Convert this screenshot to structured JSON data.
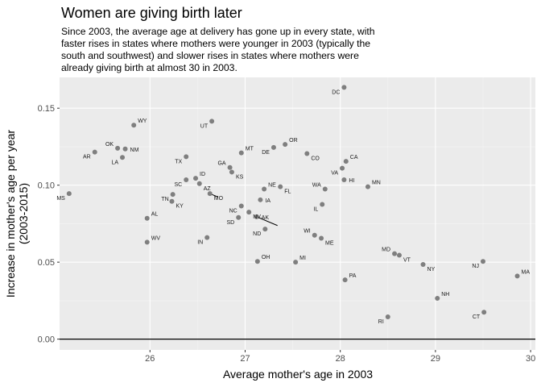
{
  "chart_data": {
    "type": "scatter",
    "title": "Women are giving birth later",
    "subtitle_lines": [
      "Since 2003, the average age at delivery has gone up in every state, with",
      "faster rises in states where mothers were younger in 2003 (typically the",
      "south and southwest) and slower rises in states where mothers were",
      "already giving birth at almost 30 in 2003."
    ],
    "xlabel": "Average mother's age in 2003",
    "ylabel_lines": [
      "Increase in mother's age per year",
      "(2003-2015)"
    ],
    "xlim": [
      25.05,
      30.05
    ],
    "ylim": [
      -0.007,
      0.17
    ],
    "xticks": [
      26,
      27,
      28,
      29,
      30
    ],
    "yticks": [
      0.0,
      0.05,
      0.1,
      0.15
    ],
    "xtick_labels": [
      "26",
      "27",
      "28",
      "29",
      "30"
    ],
    "ytick_labels": [
      "0.00",
      "0.05",
      "0.10",
      "0.15"
    ],
    "hline_y": 0.0,
    "grid": true,
    "point_color": "#7f7f7f",
    "panel_color": "#ebebeb",
    "points": [
      {
        "label": "DC",
        "x": 28.04,
        "y": 0.1635,
        "pos": "bl"
      },
      {
        "label": "WY",
        "x": 25.83,
        "y": 0.139,
        "pos": "tr"
      },
      {
        "label": "UT",
        "x": 26.65,
        "y": 0.1415,
        "pos": "bl"
      },
      {
        "label": "OK",
        "x": 25.66,
        "y": 0.124,
        "pos": "tl"
      },
      {
        "label": "NM",
        "x": 25.74,
        "y": 0.1235,
        "pos": "r"
      },
      {
        "label": "AR",
        "x": 25.42,
        "y": 0.1215,
        "pos": "bl"
      },
      {
        "label": "LA",
        "x": 25.71,
        "y": 0.118,
        "pos": "bl"
      },
      {
        "label": "TX",
        "x": 26.38,
        "y": 0.1185,
        "pos": "bl"
      },
      {
        "label": "MT",
        "x": 26.96,
        "y": 0.121,
        "pos": "tr"
      },
      {
        "label": "DE",
        "x": 27.3,
        "y": 0.1245,
        "pos": "bl"
      },
      {
        "label": "OR",
        "x": 27.42,
        "y": 0.1265,
        "pos": "tr"
      },
      {
        "label": "CO",
        "x": 27.65,
        "y": 0.1205,
        "pos": "br"
      },
      {
        "label": "GA",
        "x": 26.84,
        "y": 0.1115,
        "pos": "tl"
      },
      {
        "label": "KS",
        "x": 26.86,
        "y": 0.1085,
        "pos": "br"
      },
      {
        "label": "CA",
        "x": 28.06,
        "y": 0.1155,
        "pos": "tr"
      },
      {
        "label": "VA",
        "x": 28.02,
        "y": 0.111,
        "pos": "bl"
      },
      {
        "label": "ID",
        "x": 26.48,
        "y": 0.1045,
        "pos": "tr"
      },
      {
        "label": "SC",
        "x": 26.38,
        "y": 0.1035,
        "pos": "bl"
      },
      {
        "label": "HI",
        "x": 28.04,
        "y": 0.1035,
        "pos": "r"
      },
      {
        "label": "MN",
        "x": 28.29,
        "y": 0.099,
        "pos": "tr"
      },
      {
        "label": "AZ",
        "x": 26.52,
        "y": 0.101,
        "pos": "br"
      },
      {
        "label": "NE",
        "x": 27.2,
        "y": 0.0975,
        "pos": "tr"
      },
      {
        "label": "FL",
        "x": 27.37,
        "y": 0.099,
        "pos": "br"
      },
      {
        "label": "WA",
        "x": 27.84,
        "y": 0.0975,
        "pos": "tl"
      },
      {
        "label": "TN",
        "x": 26.24,
        "y": 0.094,
        "pos": "bl"
      },
      {
        "label": "MS",
        "x": 25.15,
        "y": 0.0945,
        "pos": "bl"
      },
      {
        "label": "MO",
        "x": 26.63,
        "y": 0.0945,
        "pos": "br"
      },
      {
        "label": "IA",
        "x": 27.16,
        "y": 0.0905,
        "pos": "r"
      },
      {
        "label": "KY",
        "x": 26.23,
        "y": 0.0895,
        "pos": "br"
      },
      {
        "label": "IL",
        "x": 27.81,
        "y": 0.0875,
        "pos": "bl"
      },
      {
        "label": "NC",
        "x": 26.96,
        "y": 0.0865,
        "pos": "bl"
      },
      {
        "label": "NV",
        "x": 27.04,
        "y": 0.0825,
        "pos": "br"
      },
      {
        "label": "AL",
        "x": 25.97,
        "y": 0.0785,
        "pos": "tr"
      },
      {
        "label": "SD",
        "x": 26.93,
        "y": 0.079,
        "pos": "bl"
      },
      {
        "label": "AK",
        "x": 27.12,
        "y": 0.0795,
        "pos": "r"
      },
      {
        "label": "ND",
        "x": 27.21,
        "y": 0.0715,
        "pos": "bl"
      },
      {
        "label": "WI",
        "x": 27.73,
        "y": 0.0675,
        "pos": "tl"
      },
      {
        "label": "ME",
        "x": 27.8,
        "y": 0.0655,
        "pos": "br"
      },
      {
        "label": "IN",
        "x": 26.6,
        "y": 0.066,
        "pos": "bl"
      },
      {
        "label": "WV",
        "x": 25.97,
        "y": 0.063,
        "pos": "tr"
      },
      {
        "label": "MD",
        "x": 28.57,
        "y": 0.0555,
        "pos": "tl"
      },
      {
        "label": "VT",
        "x": 28.62,
        "y": 0.0545,
        "pos": "br"
      },
      {
        "label": "OH",
        "x": 27.13,
        "y": 0.0505,
        "pos": "tr"
      },
      {
        "label": "MI",
        "x": 27.53,
        "y": 0.05,
        "pos": "tr"
      },
      {
        "label": "NJ",
        "x": 29.5,
        "y": 0.0505,
        "pos": "bl"
      },
      {
        "label": "NY",
        "x": 28.87,
        "y": 0.0485,
        "pos": "br"
      },
      {
        "label": "MA",
        "x": 29.86,
        "y": 0.041,
        "pos": "tr"
      },
      {
        "label": "PA",
        "x": 28.05,
        "y": 0.0385,
        "pos": "tr"
      },
      {
        "label": "NH",
        "x": 29.02,
        "y": 0.0265,
        "pos": "tr"
      },
      {
        "label": "CT",
        "x": 29.51,
        "y": 0.0175,
        "pos": "bl"
      },
      {
        "label": "RI",
        "x": 28.5,
        "y": 0.0145,
        "pos": "bl"
      }
    ]
  }
}
